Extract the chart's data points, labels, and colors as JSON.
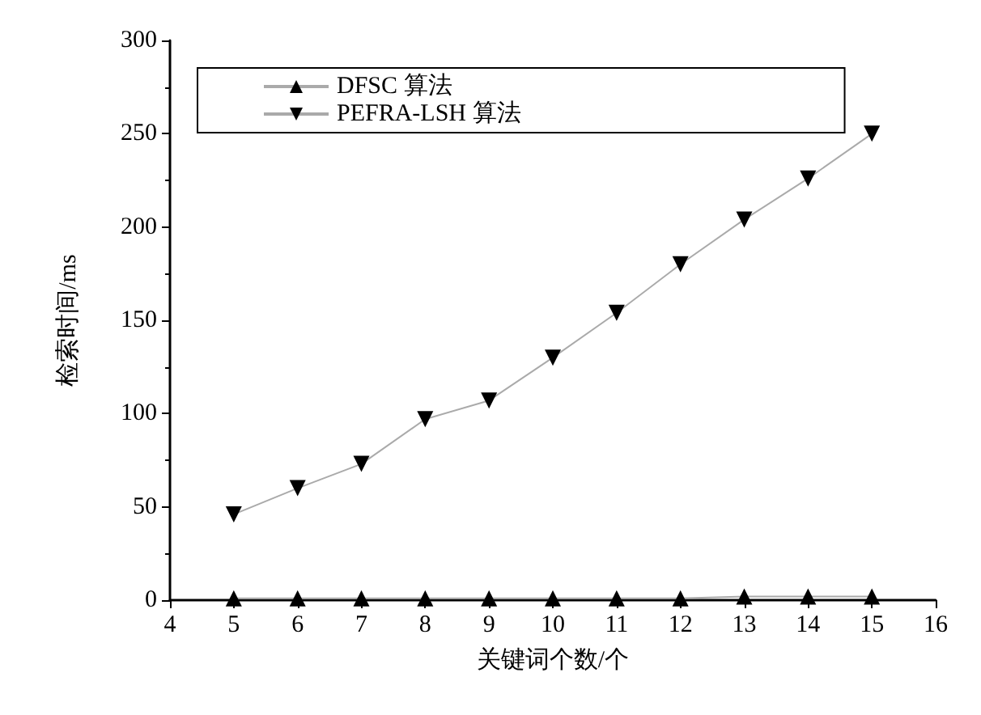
{
  "chart_data": {
    "type": "line",
    "xlabel": "关键词个数/个",
    "ylabel": "检索时间/ms",
    "x": [
      5,
      6,
      7,
      8,
      9,
      10,
      11,
      12,
      13,
      14,
      15
    ],
    "series": [
      {
        "name": "DFSC 算法",
        "color": "#000000",
        "marker": "triangle",
        "values": [
          1,
          1,
          1,
          1,
          1,
          1,
          1,
          1,
          2,
          2,
          2
        ]
      },
      {
        "name": "PEFRA-LSH 算法",
        "color": "#000000",
        "marker": "triangle-down",
        "values": [
          46,
          60,
          73,
          97,
          107,
          130,
          154,
          180,
          204,
          226,
          250
        ]
      }
    ],
    "xlim": [
      4,
      16
    ],
    "xticks": [
      4,
      5,
      6,
      7,
      8,
      9,
      10,
      11,
      12,
      13,
      14,
      15,
      16
    ],
    "ylim": [
      0,
      300
    ],
    "yticks": [
      0,
      50,
      100,
      150,
      200,
      250,
      300
    ],
    "grid": false,
    "legend": "top left"
  }
}
